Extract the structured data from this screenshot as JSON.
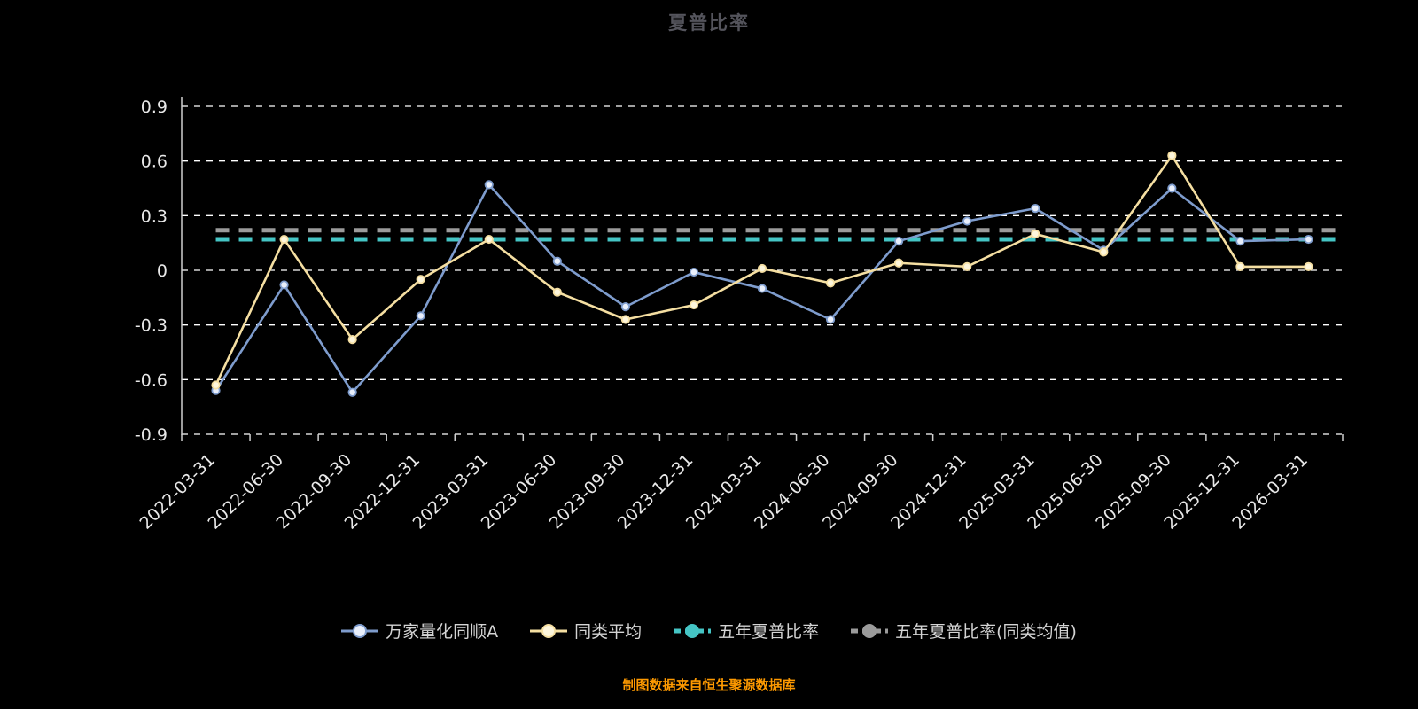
{
  "page": {
    "title": "夏普比率",
    "footer": "制图数据来自恒生聚源数据库"
  },
  "chart_data": {
    "type": "line",
    "title": "夏普比率",
    "xlabel": "",
    "ylabel": "",
    "grid": true,
    "legend_position": "bottom",
    "ylim": [
      -0.9,
      0.9
    ],
    "yticks": [
      0.9,
      0.6,
      0.3,
      0,
      -0.3,
      -0.6,
      -0.9
    ],
    "categories": [
      "2022-03-31",
      "2022-06-30",
      "2022-09-30",
      "2022-12-31",
      "2023-03-31",
      "2023-06-30",
      "2023-09-30",
      "2023-12-31",
      "2024-03-31",
      "2024-06-30",
      "2024-09-30",
      "2024-12-31",
      "2025-03-31",
      "2025-06-30",
      "2025-09-30",
      "2025-12-31",
      "2026-03-31"
    ],
    "series": [
      {
        "name": "万家量化同顺A",
        "color": "#7e9ccd",
        "marker_fill": "#e9effb",
        "values": [
          -0.66,
          -0.08,
          -0.67,
          -0.25,
          0.47,
          0.05,
          -0.2,
          -0.01,
          -0.1,
          -0.27,
          0.16,
          0.27,
          0.34,
          0.11,
          0.45,
          0.16,
          0.17
        ]
      },
      {
        "name": "同类平均",
        "color": "#f5dfa2",
        "marker_fill": "#fdf6dc",
        "values": [
          -0.63,
          0.17,
          -0.38,
          -0.05,
          0.17,
          -0.12,
          -0.27,
          -0.19,
          0.01,
          -0.07,
          0.04,
          0.02,
          0.2,
          0.1,
          0.63,
          0.02,
          0.02
        ]
      }
    ],
    "reference_lines": [
      {
        "name": "五年夏普比率",
        "color": "#45c5c5",
        "value": 0.17
      },
      {
        "name": "五年夏普比率(同类均值)",
        "color": "#9b9b9b",
        "value": 0.22
      }
    ],
    "colors": {
      "background": "#000000",
      "grid": "#ffffff",
      "axis": "#cfcfcf",
      "axis_label": "#e8e8e8",
      "title": "#54545c",
      "legend_label": "#d4d4d4",
      "footer": "#ff9a00"
    }
  }
}
